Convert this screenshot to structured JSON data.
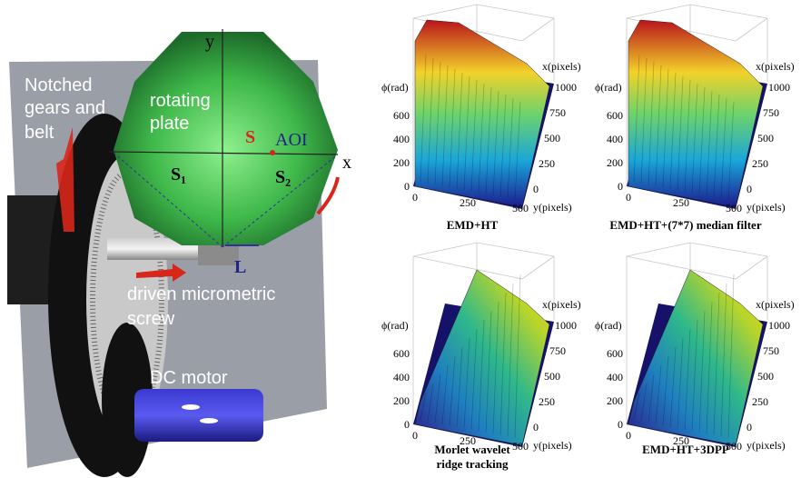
{
  "apparatus": {
    "axis_y": "y",
    "axis_x": "x",
    "gears_label": [
      "Notched",
      "gears and",
      "belt"
    ],
    "plate_label": [
      "rotating",
      "plate"
    ],
    "spot": "S",
    "aoi": "AOI",
    "s1": "S₁",
    "s2": "S₂",
    "shift": "L",
    "screw_label": [
      "driven micrometric",
      "screw"
    ],
    "motor_label": "DC motor"
  },
  "panels": [
    {
      "caption": [
        "EMD+HT"
      ],
      "z_label": "ϕ(rad)",
      "z_ticks": [
        0,
        200,
        400,
        600
      ],
      "x_label": "x(pixels)",
      "x_ticks": [
        0,
        250,
        500,
        750,
        1000
      ],
      "y_label": "y(pixels)",
      "y_ticks": [
        0,
        250,
        500
      ]
    },
    {
      "caption": [
        "EMD+HT+(7*7) median filter"
      ],
      "z_label": "ϕ(rad)",
      "z_ticks": [
        0,
        200,
        400,
        600
      ],
      "x_label": "x(pixels)",
      "x_ticks": [
        0,
        250,
        500,
        750,
        1000
      ],
      "y_label": "y(pixels)",
      "y_ticks": [
        0,
        250,
        500
      ]
    },
    {
      "caption": [
        "Morlet wavelet",
        "ridge tracking"
      ],
      "z_label": "ϕ(rad)",
      "z_ticks": [
        0,
        200,
        400,
        600
      ],
      "x_label": "x(pixels)",
      "x_ticks": [
        0,
        250,
        500,
        750,
        1000
      ],
      "y_label": "y(pixels)",
      "y_ticks": [
        0,
        250,
        500
      ]
    },
    {
      "caption": [
        "EMD+HT+3DPP"
      ],
      "z_label": "ϕ(rad)",
      "z_ticks": [
        0,
        200,
        400,
        600
      ],
      "x_label": "x(pixels)",
      "x_ticks": [
        0,
        250,
        500,
        750,
        1000
      ],
      "y_label": "y(pixels)",
      "y_ticks": [
        0,
        250,
        500
      ]
    }
  ]
}
